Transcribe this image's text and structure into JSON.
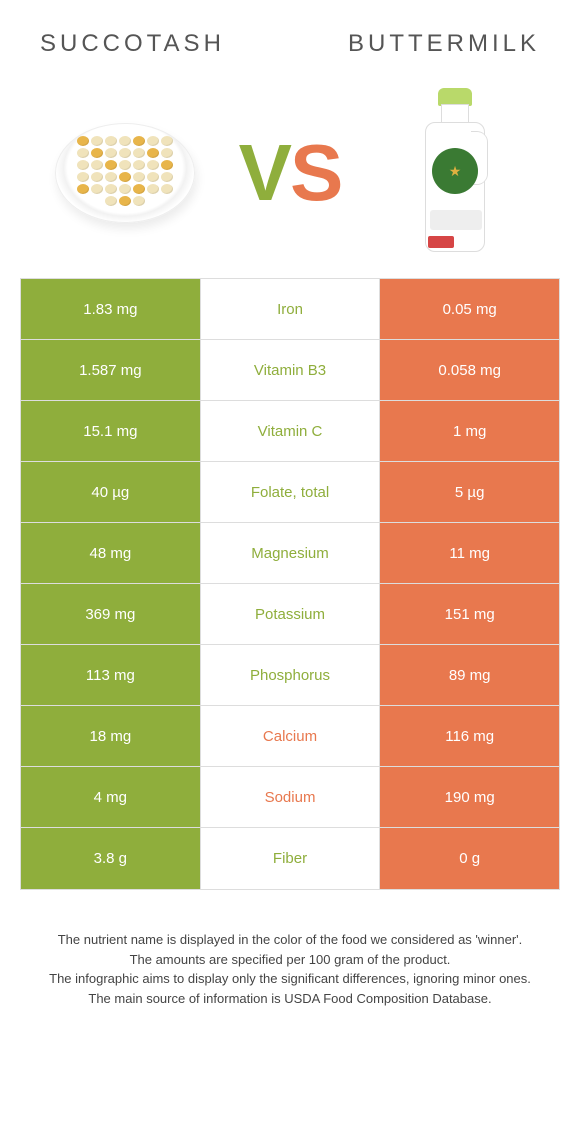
{
  "titles": {
    "left": "Succotash",
    "right": "Buttermilk"
  },
  "vs": {
    "v": "V",
    "s": "S"
  },
  "colors": {
    "left": "#8FAE3C",
    "right": "#E8784E",
    "neutral": "#444444"
  },
  "rows": [
    {
      "left": "1.83 mg",
      "label": "Iron",
      "right": "0.05 mg",
      "winner": "left"
    },
    {
      "left": "1.587 mg",
      "label": "Vitamin B3",
      "right": "0.058 mg",
      "winner": "left"
    },
    {
      "left": "15.1 mg",
      "label": "Vitamin C",
      "right": "1 mg",
      "winner": "left"
    },
    {
      "left": "40 µg",
      "label": "Folate, total",
      "right": "5 µg",
      "winner": "left"
    },
    {
      "left": "48 mg",
      "label": "Magnesium",
      "right": "11 mg",
      "winner": "left"
    },
    {
      "left": "369 mg",
      "label": "Potassium",
      "right": "151 mg",
      "winner": "left"
    },
    {
      "left": "113 mg",
      "label": "Phosphorus",
      "right": "89 mg",
      "winner": "left"
    },
    {
      "left": "18 mg",
      "label": "Calcium",
      "right": "116 mg",
      "winner": "right"
    },
    {
      "left": "4 mg",
      "label": "Sodium",
      "right": "190 mg",
      "winner": "right"
    },
    {
      "left": "3.8 g",
      "label": "Fiber",
      "right": "0 g",
      "winner": "left"
    }
  ],
  "footer": {
    "l1": "The nutrient name is displayed in the color of the food we considered as 'winner'.",
    "l2": "The amounts are specified per 100 gram of the product.",
    "l3": "The infographic aims to display only the significant differences, ignoring minor ones.",
    "l4": "The main source of information is USDA Food Composition Database."
  }
}
